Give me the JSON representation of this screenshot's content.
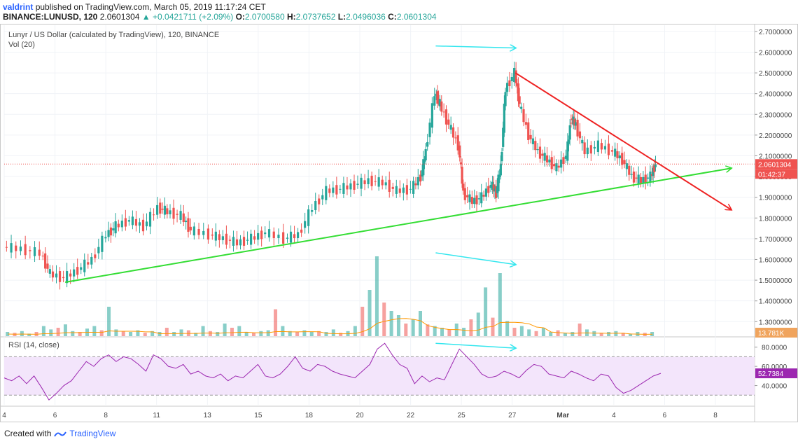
{
  "header": {
    "author": "valdrint",
    "published_text": "published on TradingView.com, March 05, 2019 11:17:24 CET",
    "symbol": "BINANCE:LUNUSD, 120",
    "last": "2.0601304",
    "change": "+0.0421711 (+2.09%)",
    "open_label": "O:",
    "open": "2.0700580",
    "high_label": "H:",
    "high": "2.0737652",
    "low_label": "L:",
    "low": "2.0496036",
    "close_label": "C:",
    "close": "2.0601304"
  },
  "legend": {
    "title": "Lunyr / US Dollar (calculated by TradingView), 120, BINANCE",
    "vol": "Vol (20)"
  },
  "rsi_legend": "RSI (14, close)",
  "footer": {
    "created_with": "Created with",
    "brand": "TradingView"
  },
  "badges": {
    "price": "2.0601304",
    "countdown": "01:42:37",
    "volume": "13.781K",
    "rsi": "52.7384"
  },
  "colors": {
    "up": "#26a69a",
    "down": "#ef5350",
    "trend_support": "#33dd33",
    "trend_resistance": "#ee2222",
    "divergence": "#33e6ee",
    "rsi_line": "#9c27b0",
    "rsi_band": "#f3e5fb",
    "vol_ma": "#ff9800",
    "price_line": "#ef5350"
  },
  "chart_data": [
    {
      "type": "candlestick",
      "panel": "price",
      "x_ticks": [
        "4",
        "6",
        "8",
        "11",
        "13",
        "15",
        "18",
        "20",
        "22",
        "25",
        "27",
        "Mar",
        "4",
        "6",
        "8"
      ],
      "y_ticks": [
        "2.7000000",
        "2.6000000",
        "2.5000000",
        "2.4000000",
        "2.3000000",
        "2.2000000",
        "2.1000000",
        "2.0000000",
        "1.9000000",
        "1.8000000",
        "1.7000000",
        "1.6000000",
        "1.5000000",
        "1.4000000",
        "1.3000000"
      ],
      "ylim": [
        1.23,
        2.73
      ],
      "trend_support": {
        "from": [
          0.13,
          1.49
        ],
        "to": [
          1.55,
          2.04
        ]
      },
      "trend_resistance": {
        "from": [
          1.09,
          2.5
        ],
        "to": [
          1.55,
          1.84
        ]
      },
      "price_divergence": {
        "from": [
          0.92,
          2.63
        ],
        "to": [
          1.09,
          2.62
        ]
      },
      "price_series": [
        [
          0.0,
          1.66
        ],
        [
          0.04,
          1.65
        ],
        [
          0.08,
          1.63
        ],
        [
          0.1,
          1.53
        ],
        [
          0.13,
          1.51
        ],
        [
          0.16,
          1.55
        ],
        [
          0.19,
          1.6
        ],
        [
          0.22,
          1.72
        ],
        [
          0.24,
          1.76
        ],
        [
          0.27,
          1.79
        ],
        [
          0.3,
          1.76
        ],
        [
          0.33,
          1.85
        ],
        [
          0.35,
          1.83
        ],
        [
          0.38,
          1.81
        ],
        [
          0.4,
          1.74
        ],
        [
          0.44,
          1.72
        ],
        [
          0.47,
          1.7
        ],
        [
          0.5,
          1.68
        ],
        [
          0.53,
          1.7
        ],
        [
          0.56,
          1.73
        ],
        [
          0.6,
          1.7
        ],
        [
          0.63,
          1.72
        ],
        [
          0.66,
          1.85
        ],
        [
          0.69,
          1.93
        ],
        [
          0.72,
          1.94
        ],
        [
          0.75,
          1.96
        ],
        [
          0.78,
          1.98
        ],
        [
          0.81,
          1.97
        ],
        [
          0.84,
          1.93
        ],
        [
          0.87,
          1.94
        ],
        [
          0.89,
          2.0
        ],
        [
          0.9,
          2.12
        ],
        [
          0.92,
          2.4
        ],
        [
          0.93,
          2.35
        ],
        [
          0.95,
          2.25
        ],
        [
          0.97,
          2.15
        ],
        [
          0.98,
          1.92
        ],
        [
          1.0,
          1.88
        ],
        [
          1.02,
          1.9
        ],
        [
          1.04,
          1.96
        ],
        [
          1.05,
          1.92
        ],
        [
          1.06,
          2.05
        ],
        [
          1.07,
          2.42
        ],
        [
          1.09,
          2.5
        ],
        [
          1.1,
          2.35
        ],
        [
          1.12,
          2.2
        ],
        [
          1.14,
          2.12
        ],
        [
          1.16,
          2.08
        ],
        [
          1.18,
          2.04
        ],
        [
          1.2,
          2.1
        ],
        [
          1.21,
          2.28
        ],
        [
          1.22,
          2.25
        ],
        [
          1.24,
          2.12
        ],
        [
          1.27,
          2.15
        ],
        [
          1.3,
          2.12
        ],
        [
          1.32,
          2.08
        ],
        [
          1.34,
          2.0
        ],
        [
          1.36,
          1.98
        ],
        [
          1.38,
          2.0
        ],
        [
          1.39,
          2.06
        ]
      ],
      "price_line_value": 2.0601304
    },
    {
      "type": "bar",
      "panel": "volume",
      "divergence": {
        "from": [
          0.92,
          0.85
        ],
        "to": [
          1.09,
          0.73
        ]
      },
      "values": [
        0.05,
        0.04,
        0.06,
        0.03,
        0.05,
        0.12,
        0.08,
        0.1,
        0.14,
        0.06,
        0.05,
        0.09,
        0.12,
        0.07,
        0.35,
        0.08,
        0.06,
        0.05,
        0.07,
        0.04,
        0.06,
        0.05,
        0.1,
        0.05,
        0.08,
        0.07,
        0.04,
        0.12,
        0.06,
        0.05,
        0.15,
        0.1,
        0.12,
        0.05,
        0.04,
        0.06,
        0.07,
        0.32,
        0.12,
        0.06,
        0.05,
        0.07,
        0.05,
        0.06,
        0.05,
        0.08,
        0.04,
        0.06,
        0.12,
        0.35,
        0.55,
        0.95,
        0.4,
        0.3,
        0.25,
        0.15,
        0.2,
        0.3,
        0.14,
        0.12,
        0.1,
        0.08,
        0.15,
        0.1,
        0.2,
        0.28,
        0.58,
        0.22,
        0.75,
        0.18,
        0.1,
        0.12,
        0.08,
        0.06,
        0.1,
        0.05,
        0.07,
        0.04,
        0.05,
        0.15,
        0.08,
        0.06,
        0.04,
        0.05,
        0.06,
        0.04,
        0.03,
        0.05,
        0.04,
        0.05
      ]
    },
    {
      "type": "line",
      "panel": "rsi",
      "y_ticks": [
        "80.0000",
        "60.0000",
        "40.0000"
      ],
      "ylim": [
        20,
        90
      ],
      "band": [
        30,
        70
      ],
      "divergence": {
        "from": [
          0.92,
          84
        ],
        "to": [
          1.09,
          79
        ]
      },
      "values": [
        48,
        45,
        50,
        42,
        50,
        38,
        25,
        32,
        40,
        45,
        55,
        65,
        60,
        68,
        72,
        65,
        70,
        68,
        62,
        55,
        72,
        68,
        60,
        58,
        62,
        52,
        55,
        50,
        48,
        52,
        45,
        50,
        48,
        55,
        62,
        50,
        48,
        52,
        60,
        70,
        58,
        55,
        62,
        60,
        55,
        52,
        50,
        48,
        55,
        62,
        78,
        84,
        72,
        62,
        58,
        42,
        50,
        44,
        48,
        46,
        62,
        78,
        70,
        62,
        52,
        48,
        50,
        55,
        52,
        48,
        56,
        62,
        60,
        52,
        50,
        48,
        55,
        52,
        48,
        45,
        52,
        50,
        38,
        32,
        35,
        40,
        45,
        50,
        52.7
      ]
    }
  ]
}
